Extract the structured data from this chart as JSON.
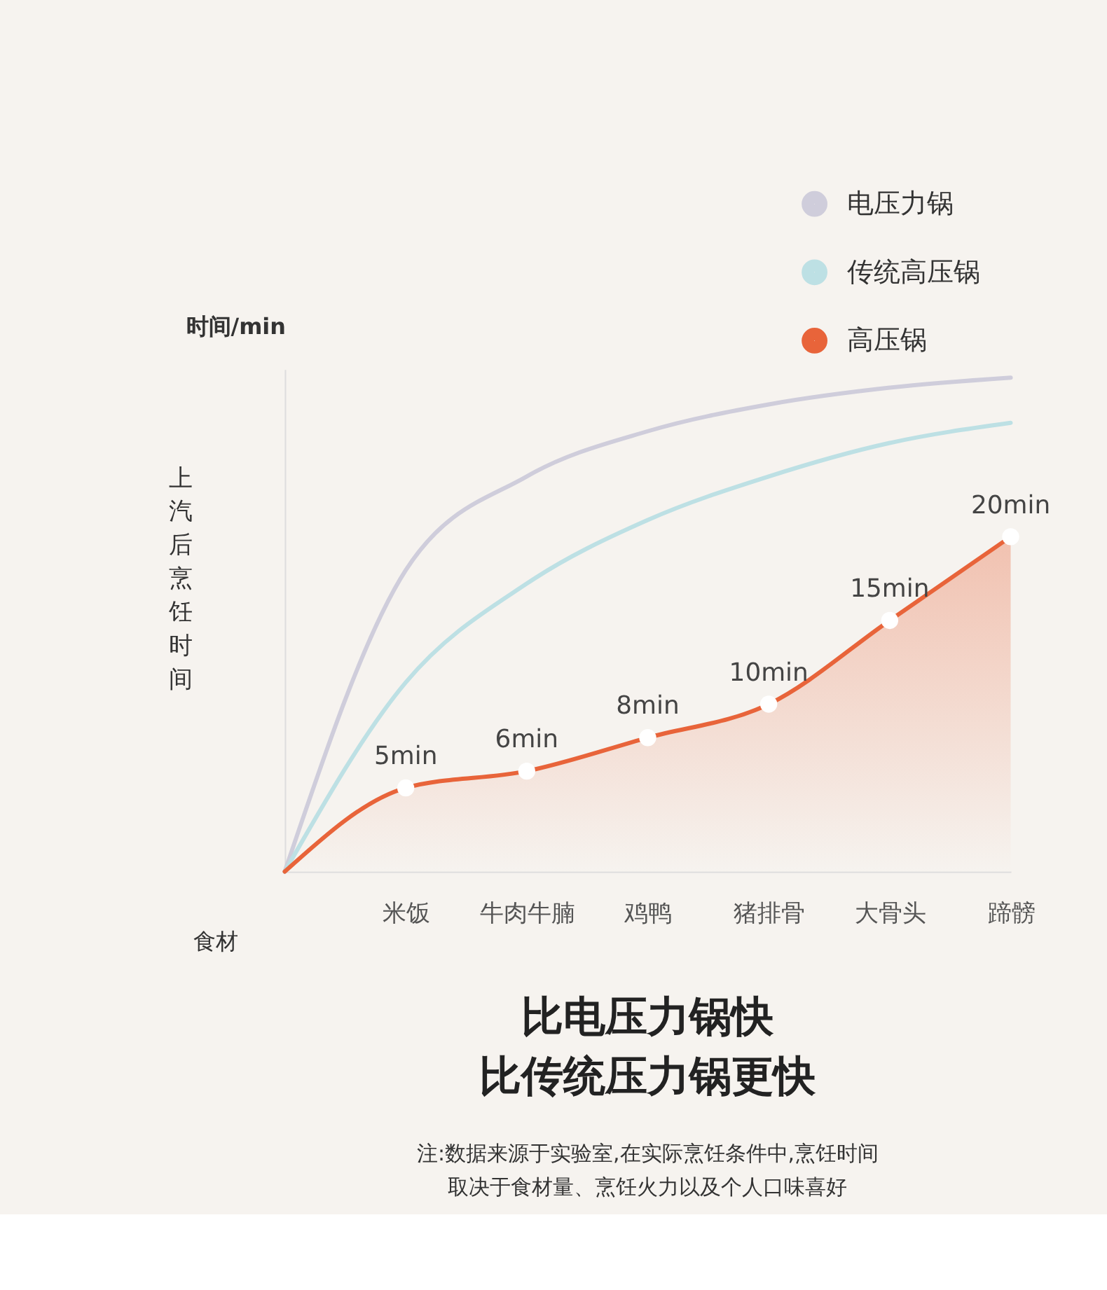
{
  "chart_data": {
    "type": "line",
    "title": "比电压力锅快",
    "subtitle": "比传统压力锅更快",
    "xlabel": "食材",
    "ylabel": "上汽后烹饪时间",
    "annotations": [
      "时间/min",
      "注:数据来源于实验室,在实际烹饪条件中,烹饪时间",
      "取决于食材量、烹饪火力以及个人口味喜好"
    ],
    "categories": [
      null,
      "米饭",
      "牛肉牛腩",
      "鸡鸭",
      "猪排骨",
      "大骨头",
      "蹄髈"
    ],
    "ylim": [
      0,
      30
    ],
    "tick_labels": "x",
    "legend": "top right",
    "series": [
      {
        "name": "电压力锅",
        "color": "#cfcddb",
        "values": [
          0,
          18,
          23.6,
          26.3,
          27.9,
          28.9,
          29.5
        ]
      },
      {
        "name": "传统高压锅",
        "color": "#bde0e4",
        "values": [
          0,
          11.3,
          17.2,
          21,
          23.6,
          25.6,
          26.8
        ]
      },
      {
        "name": "高压锅",
        "color": "#e8643a",
        "type": "area",
        "marker": "circle",
        "values": [
          0,
          5,
          6,
          8,
          10,
          15,
          20
        ],
        "value_labels": [
          null,
          "5min",
          "6min",
          "8min",
          "10min",
          "15min",
          "20min"
        ]
      }
    ]
  }
}
